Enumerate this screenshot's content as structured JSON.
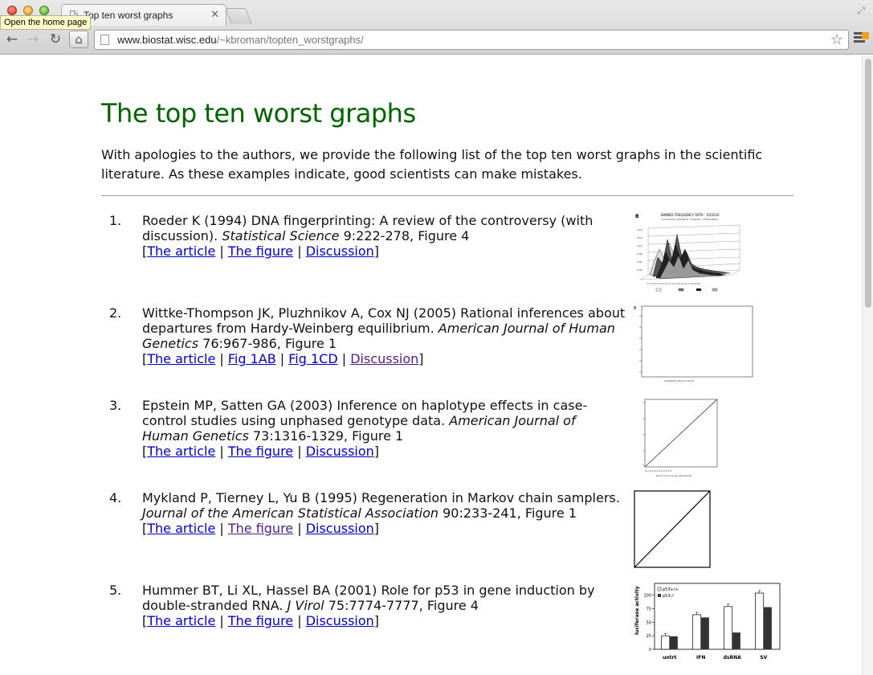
{
  "browser": {
    "tab_title": "Top ten worst graphs",
    "tooltip": "Open the home page",
    "url_host": "www.biostat.wisc.edu",
    "url_path": "/~kbroman/topten_worstgraphs/"
  },
  "page": {
    "title": "The top ten worst graphs",
    "intro": "With apologies to the authors, we provide the following list of the top ten worst graphs in the scientific literature. As these examples indicate, good scientists can make mistakes."
  },
  "items": [
    {
      "num": "1.",
      "citation_pre": "Roeder K (1994) DNA fingerprinting: A review of the controversy (with discussion).",
      "journal": "Statistical Science",
      "citation_post": "9:222-278, Figure 4",
      "links": [
        "The article",
        "The figure",
        "Discussion"
      ],
      "thumb_title": "BINNED FREQUENCY DATA - D1S520",
      "thumb_subtitle": "CAUCASIAN, JAPANESE, HISPANIC, VIETNAMESE",
      "thumb_label": "B"
    },
    {
      "num": "2.",
      "citation_pre": "Wittke-Thompson JK, Pluzhnikov A, Cox NJ (2005) Rational inferences about departures from Hardy-Weinberg equilibrium.",
      "journal": "American Journal of Human Genetics",
      "citation_post": "76:967-986, Figure 1",
      "links": [
        "The article",
        "Fig 1AB",
        "Fig 1CD",
        "Discussion"
      ],
      "thumb_label": "B"
    },
    {
      "num": "3.",
      "citation_pre": "Epstein MP, Satten GA (2003) Inference on haplotype effects in case-control studies using unphased genotype data.",
      "journal": "American Journal of Human Genetics",
      "citation_post": "73:1316-1329, Figure 1",
      "links": [
        "The article",
        "The figure",
        "Discussion"
      ]
    },
    {
      "num": "4.",
      "citation_pre": "Mykland P, Tierney L, Yu B (1995) Regeneration in Markov chain samplers.",
      "journal": "Journal of the American Statistical Association",
      "citation_post": "90:233-241, Figure 1",
      "links": [
        "The article",
        "The figure",
        "Discussion"
      ]
    },
    {
      "num": "5.",
      "citation_pre": "Hummer BT, Li XL, Hassel BA (2001) Role for p53 in gene induction by double-stranded RNA.",
      "journal": "J Virol",
      "citation_post": "75:7774-7777, Figure 4",
      "links": [
        "The article",
        "The figure",
        "Discussion"
      ],
      "thumb_ylabel": "luciferase activity",
      "thumb_legend": [
        "p53+/+",
        "p53-/-"
      ],
      "thumb_categories": [
        "untrt",
        "IFN",
        "dsRNA",
        "SV"
      ],
      "thumb_ticks": [
        "100",
        "75",
        "50",
        "25",
        "0"
      ],
      "thumb_values_wt": [
        25,
        64,
        79,
        104
      ],
      "thumb_values_ko": [
        24,
        59,
        31,
        78
      ]
    }
  ]
}
